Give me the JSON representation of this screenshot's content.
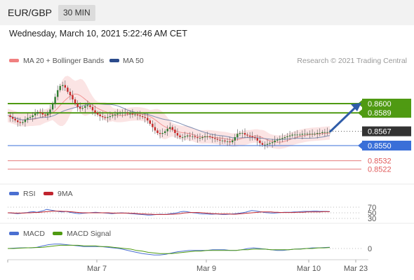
{
  "header": {
    "symbol": "EUR/GBP",
    "interval": "30 MIN"
  },
  "datetime": "Wednesday, March 10, 2021 5:22:46 AM CET",
  "legend": {
    "ma20": {
      "label": "MA 20 + Bollinger Bands",
      "color": "#f08080"
    },
    "ma50": {
      "label": "MA 50",
      "color": "#2b4b8c"
    }
  },
  "credit": "Research © 2021 Trading Central",
  "colors": {
    "green": "#4f9a12",
    "blue": "#3a6fd8",
    "red": "#e05a5a",
    "dark": "#333333",
    "up": "#2e7d32",
    "down": "#c62828",
    "wick": "#555555"
  },
  "chart_data": [
    {
      "type": "candlestick",
      "title": "EUR/GBP",
      "x_ticks": [
        "Mar 7",
        "Mar 9",
        "Mar 10",
        "Mar 23"
      ],
      "ylim": [
        0.8515,
        0.864
      ],
      "current_price": "0.8567",
      "levels": [
        {
          "label": "0.8600",
          "value": 0.86,
          "color": "green",
          "style": "line"
        },
        {
          "label": "0.8589",
          "value": 0.8589,
          "color": "green",
          "style": "line"
        },
        {
          "label": "0.8567",
          "value": 0.8567,
          "color": "dark",
          "style": "current"
        },
        {
          "label": "0.8550",
          "value": 0.855,
          "color": "blue",
          "style": "line"
        },
        {
          "label": "0.8532",
          "value": 0.8532,
          "color": "red",
          "style": "thin"
        },
        {
          "label": "0.8522",
          "value": 0.8522,
          "color": "red",
          "style": "thin"
        }
      ],
      "close": [
        0.8586,
        0.8584,
        0.8582,
        0.858,
        0.8578,
        0.8577,
        0.8578,
        0.8581,
        0.8583,
        0.8584,
        0.8586,
        0.8588,
        0.859,
        0.8589,
        0.8587,
        0.8586,
        0.8588,
        0.8593,
        0.86,
        0.8608,
        0.8616,
        0.8621,
        0.8622,
        0.8619,
        0.8614,
        0.861,
        0.8605,
        0.86,
        0.8596,
        0.8594,
        0.8595,
        0.8597,
        0.8598,
        0.8596,
        0.8592,
        0.8589,
        0.8587,
        0.8585,
        0.8584,
        0.8583,
        0.8584,
        0.8585,
        0.8586,
        0.8587,
        0.8588,
        0.8589,
        0.8589,
        0.8589,
        0.8588,
        0.8588,
        0.8587,
        0.8587,
        0.8586,
        0.8585,
        0.8584,
        0.8583,
        0.858,
        0.8576,
        0.8572,
        0.8568,
        0.8565,
        0.8564,
        0.8565,
        0.8567,
        0.857,
        0.8572,
        0.8569,
        0.8565,
        0.8562,
        0.856,
        0.856,
        0.8561,
        0.8562,
        0.8561,
        0.8561,
        0.856,
        0.8559,
        0.8559,
        0.856,
        0.8561,
        0.8561,
        0.856,
        0.8559,
        0.8558,
        0.8557,
        0.8556,
        0.8556,
        0.8555,
        0.8555,
        0.8554,
        0.8556,
        0.856,
        0.8564,
        0.8565,
        0.8565,
        0.8563,
        0.8562,
        0.8561,
        0.856,
        0.8559,
        0.8556,
        0.8553,
        0.8551,
        0.8551,
        0.8552,
        0.8553,
        0.8554,
        0.8556,
        0.8557,
        0.8558,
        0.8559,
        0.856,
        0.8561,
        0.8562,
        0.8563,
        0.8563,
        0.8563,
        0.8563,
        0.8564,
        0.8564,
        0.8564,
        0.8564,
        0.8564,
        0.8564,
        0.8565,
        0.8565,
        0.8566,
        0.8566,
        0.8566,
        0.8567
      ]
    },
    {
      "type": "line",
      "title": "RSI",
      "series": [
        {
          "name": "RSI",
          "color": "#4a6fd1",
          "values": [
            50,
            49,
            48,
            47,
            48,
            50,
            51,
            53,
            54,
            52,
            55,
            58,
            62,
            60,
            58,
            56,
            54,
            53,
            55,
            52,
            50,
            48,
            47,
            48,
            49,
            50,
            51,
            52,
            51,
            50,
            49,
            48,
            47,
            48,
            49,
            50,
            49,
            48,
            47,
            46,
            45,
            44,
            43,
            42,
            42,
            43,
            44,
            45,
            44,
            45,
            47,
            48,
            50,
            53,
            55,
            54,
            52,
            50,
            49,
            47,
            46,
            46,
            45,
            45,
            46,
            45,
            44,
            44,
            45,
            46,
            47,
            48,
            50,
            52,
            55,
            58,
            57,
            55,
            53,
            51,
            50,
            49,
            49,
            50,
            51,
            52,
            52,
            52,
            53,
            53,
            54,
            55,
            55,
            55,
            56,
            56,
            55,
            55,
            55,
            54
          ]
        },
        {
          "name": "9MA",
          "color": "#c0242e",
          "values": [
            50,
            50,
            49,
            49,
            49,
            49,
            50,
            50,
            51,
            51,
            52,
            53,
            54,
            55,
            56,
            56,
            56,
            55,
            55,
            54,
            53,
            52,
            51,
            50,
            50,
            50,
            50,
            50,
            50,
            50,
            50,
            50,
            49,
            49,
            49,
            49,
            49,
            49,
            48,
            48,
            47,
            46,
            46,
            45,
            45,
            44,
            44,
            44,
            44,
            44,
            45,
            45,
            46,
            47,
            49,
            50,
            51,
            51,
            51,
            51,
            50,
            49,
            48,
            47,
            47,
            46,
            46,
            46,
            46,
            45,
            45,
            46,
            47,
            48,
            49,
            50,
            51,
            52,
            53,
            53,
            53,
            53,
            52,
            52,
            51,
            51,
            51,
            51,
            51,
            52,
            52,
            52,
            53,
            53,
            53,
            53,
            53,
            54,
            54,
            54
          ]
        }
      ],
      "levels": [
        "70",
        "50",
        "30"
      ],
      "ylim": [
        30,
        70
      ]
    },
    {
      "type": "line",
      "title": "MACD",
      "series": [
        {
          "name": "MACD",
          "color": "#4a6fd1",
          "values": [
            0,
            5e-05,
            0.0001,
            0.00012,
            0.0001,
            0.0002,
            0.0004,
            0.0006,
            0.0007,
            0.0007,
            0.0006,
            0.0005,
            0.0004,
            0.0003,
            0.0003,
            0.0003,
            0.0003,
            0.0002,
            0.0001,
            0,
            -0.0002,
            -0.0004,
            -0.0006,
            -0.0008,
            -0.0009,
            -0.001,
            -0.001,
            -0.0009,
            -0.0007,
            -0.0005,
            -0.0004,
            -0.0003,
            -0.0003,
            -0.0003,
            -0.0003,
            -0.0002,
            -0.0002,
            -0.0002,
            -0.0003,
            -0.0003,
            -0.0002,
            0,
            0.0001,
            0,
            -0.0001,
            -0.0002,
            -0.0003,
            -0.0003,
            -0.0002,
            -0.0001,
            -5e-05,
            0,
            0.0001,
            0.0001,
            0.00015,
            0.0002
          ]
        },
        {
          "name": "MACD Signal",
          "color": "#4f9a12",
          "values": [
            0,
            0,
            5e-05,
            0.0001,
            0.00012,
            0.00015,
            0.0002,
            0.0003,
            0.0004,
            0.0005,
            0.0005,
            0.0005,
            0.0005,
            0.0004,
            0.0004,
            0.0004,
            0.0003,
            0.0003,
            0.0002,
            0.0001,
            0,
            -0.0001,
            -0.0003,
            -0.0004,
            -0.0006,
            -0.0007,
            -0.0008,
            -0.0008,
            -0.0008,
            -0.0007,
            -0.0006,
            -0.0005,
            -0.0004,
            -0.0004,
            -0.0003,
            -0.0003,
            -0.0003,
            -0.0003,
            -0.0003,
            -0.0003,
            -0.0002,
            -0.0002,
            -0.0001,
            -0.0001,
            -0.0001,
            -0.0002,
            -0.0002,
            -0.0002,
            -0.0002,
            -0.0001,
            -0.0001,
            0,
            0,
            0.0001,
            0.0001,
            0.00015
          ]
        }
      ],
      "zero_label": "0",
      "ylim": [
        -0.0012,
        0.0012
      ]
    }
  ]
}
